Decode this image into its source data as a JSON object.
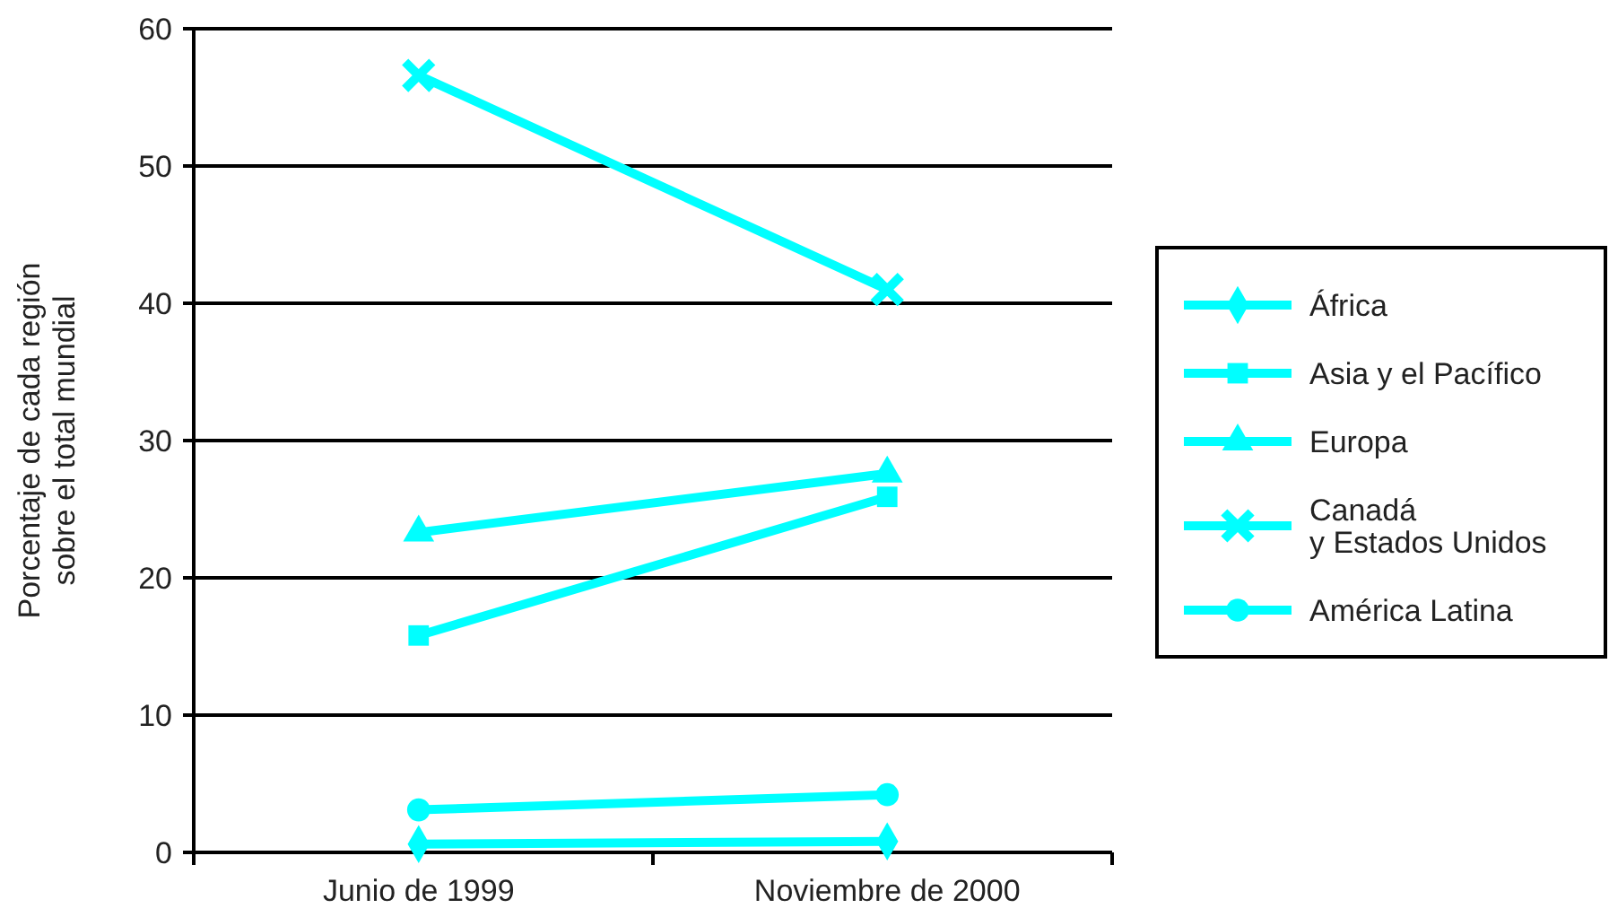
{
  "chart_data": {
    "type": "line",
    "ylabel": "Porcentaje de cada región\nsobre el total mundial",
    "categories": [
      "Junio de 1999",
      "Noviembre de 2000"
    ],
    "series": [
      {
        "name": "África",
        "color": "#00ffff",
        "marker": "diamond",
        "values": [
          0.6,
          0.8
        ]
      },
      {
        "name": "Asia y el Pacífico",
        "color": "#00ffff",
        "marker": "square",
        "values": [
          15.8,
          25.9
        ]
      },
      {
        "name": "Europa",
        "color": "#00ffff",
        "marker": "triangle",
        "values": [
          23.3,
          27.6
        ]
      },
      {
        "name": "Canadá\ny Estados Unidos",
        "color": "#00ffff",
        "marker": "cross",
        "values": [
          56.6,
          41.0
        ]
      },
      {
        "name": "América Latina",
        "color": "#00ffff",
        "marker": "circle",
        "values": [
          3.1,
          4.2
        ]
      }
    ],
    "ylim": [
      0,
      60
    ],
    "yticks": [
      0,
      10,
      20,
      30,
      40,
      50,
      60
    ],
    "grid": "y",
    "legend": "right",
    "line_style": "solid"
  }
}
